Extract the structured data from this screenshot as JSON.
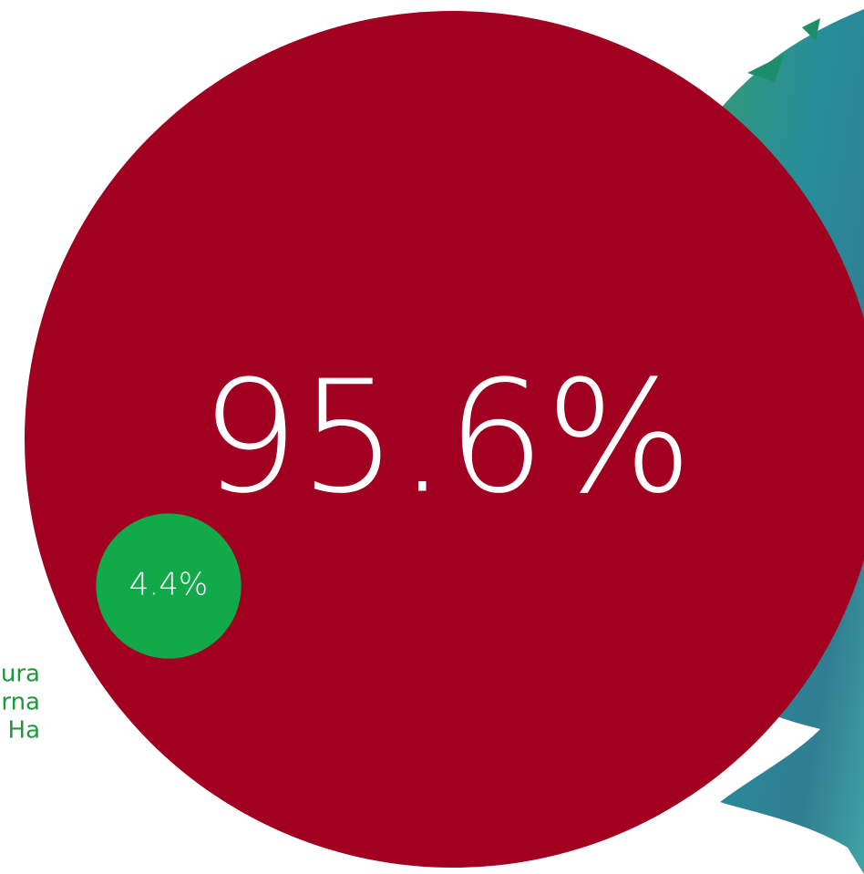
{
  "chart_data": {
    "type": "bubble",
    "values": [
      95.6,
      4.4
    ],
    "value_labels": [
      "95.6%",
      "4.4%"
    ],
    "colors": [
      "#a10021",
      "#12a94b"
    ],
    "annotations": [
      "ura",
      "rna",
      "Ha"
    ]
  }
}
